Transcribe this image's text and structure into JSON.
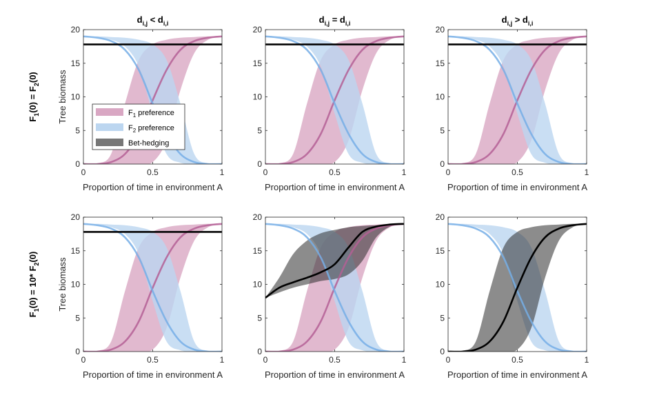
{
  "figure": {
    "column_titles": [
      {
        "base": "d",
        "sub1": "i,j",
        "op": " < ",
        "sub2": "i,i"
      },
      {
        "base": "d",
        "sub1": "i,j",
        "op": " = ",
        "sub2": "i,i"
      },
      {
        "base": "d",
        "sub1": "i,j",
        "op": " > ",
        "sub2": "i,i"
      }
    ],
    "row_labels": [
      {
        "pre": "F",
        "sub1": "1",
        "mid": "(0) = F",
        "sub2": "2",
        "post": "(0)"
      },
      {
        "pre": "F",
        "sub1": "1",
        "mid": "(0) = 10* F",
        "sub2": "2",
        "post": "(0)"
      }
    ],
    "colors": {
      "f1_fill": "#d9a7c3",
      "f1_line": "#b45f95",
      "f2_fill": "#bcd6f0",
      "f2_line": "#76aee6",
      "overlap": "#b5a7d6",
      "bet_fill": "#2e2e2e",
      "bet_line": "#000000"
    },
    "legend": {
      "items": [
        {
          "pre": "F",
          "sub": "1",
          "post": " preference",
          "key": "f1"
        },
        {
          "pre": "F",
          "sub": "2",
          "post": " preference",
          "key": "f2"
        },
        {
          "pre": "Bet-hedging",
          "sub": "",
          "post": "",
          "key": "bet"
        }
      ]
    }
  },
  "chart_data": [
    {
      "type": "area",
      "row": 0,
      "col": 0,
      "xlabel": "Proportion of time in environment A",
      "ylabel": "Tree biomass",
      "xlim": [
        0,
        1
      ],
      "ylim": [
        0,
        20
      ],
      "xticks": [
        0,
        0.5,
        1
      ],
      "yticks": [
        0,
        5,
        10,
        15,
        20
      ],
      "series": [
        {
          "name": "F1 preference",
          "kind": "band_line",
          "x": [
            0,
            0.1,
            0.2,
            0.3,
            0.4,
            0.5,
            0.6,
            0.7,
            0.8,
            0.9,
            1
          ],
          "y": [
            0,
            0,
            0.3,
            1.5,
            4.5,
            9.5,
            14,
            17,
            18.3,
            18.8,
            19
          ],
          "lower": [
            0,
            0,
            0,
            0,
            0,
            0.3,
            3.5,
            11,
            16.5,
            18.5,
            19
          ],
          "upper": [
            0,
            0.1,
            1.5,
            9,
            15.5,
            17.8,
            18.5,
            18.8,
            18.9,
            19,
            19
          ]
        },
        {
          "name": "F2 preference",
          "kind": "band_line",
          "x": [
            0,
            0.1,
            0.2,
            0.3,
            0.4,
            0.5,
            0.6,
            0.7,
            0.8,
            0.9,
            1
          ],
          "y": [
            19,
            18.8,
            18.3,
            17,
            14,
            9,
            4.5,
            1.5,
            0.3,
            0,
            0
          ],
          "lower": [
            19,
            18.9,
            18.5,
            17.5,
            14.5,
            7.5,
            1.5,
            0.2,
            0,
            0,
            0
          ],
          "upper": [
            19,
            19,
            18.9,
            18.8,
            18.5,
            17.8,
            15.5,
            9,
            1.5,
            0.1,
            0
          ]
        },
        {
          "name": "Bet-hedging",
          "kind": "line",
          "x": [
            0,
            0.25,
            0.5,
            0.75,
            1
          ],
          "y": [
            17.8,
            17.8,
            17.8,
            17.8,
            17.8
          ]
        }
      ]
    },
    {
      "type": "area",
      "row": 0,
      "col": 1,
      "xlabel": "Proportion of time in environment A",
      "ylabel": "",
      "xlim": [
        0,
        1
      ],
      "ylim": [
        0,
        20
      ],
      "xticks": [
        0,
        0.5,
        1
      ],
      "yticks": [
        0,
        5,
        10,
        15,
        20
      ],
      "series": [
        {
          "name": "F1 preference",
          "kind": "band_line",
          "x": [
            0,
            0.1,
            0.2,
            0.3,
            0.4,
            0.5,
            0.6,
            0.7,
            0.8,
            0.9,
            1
          ],
          "y": [
            0,
            0,
            0.3,
            1.5,
            4.5,
            9.5,
            14,
            17,
            18.3,
            18.8,
            19
          ],
          "lower": [
            0,
            0,
            0,
            0,
            0,
            0.3,
            3.5,
            11,
            16.5,
            18.5,
            19
          ],
          "upper": [
            0,
            0.1,
            1.5,
            9,
            15.5,
            17.8,
            18.5,
            18.8,
            18.9,
            19,
            19
          ]
        },
        {
          "name": "F2 preference",
          "kind": "band_line",
          "x": [
            0,
            0.1,
            0.2,
            0.3,
            0.4,
            0.5,
            0.6,
            0.7,
            0.8,
            0.9,
            1
          ],
          "y": [
            19,
            18.8,
            18.3,
            17,
            14,
            9,
            4.5,
            1.5,
            0.3,
            0,
            0
          ],
          "lower": [
            19,
            18.9,
            18.5,
            17.5,
            14.5,
            7.5,
            1.5,
            0.2,
            0,
            0,
            0
          ],
          "upper": [
            19,
            19,
            18.9,
            18.8,
            18.5,
            17.8,
            15.5,
            9,
            1.5,
            0.1,
            0
          ]
        },
        {
          "name": "Bet-hedging",
          "kind": "line",
          "x": [
            0,
            0.25,
            0.5,
            0.75,
            1
          ],
          "y": [
            17.8,
            17.8,
            17.8,
            17.8,
            17.8
          ]
        }
      ]
    },
    {
      "type": "area",
      "row": 0,
      "col": 2,
      "xlabel": "Proportion of time in environment A",
      "ylabel": "",
      "xlim": [
        0,
        1
      ],
      "ylim": [
        0,
        20
      ],
      "xticks": [
        0,
        0.5,
        1
      ],
      "yticks": [
        0,
        5,
        10,
        15,
        20
      ],
      "series": [
        {
          "name": "F1 preference",
          "kind": "band_line",
          "x": [
            0,
            0.1,
            0.2,
            0.3,
            0.4,
            0.5,
            0.6,
            0.7,
            0.8,
            0.9,
            1
          ],
          "y": [
            0,
            0,
            0.3,
            1.5,
            4.5,
            9.5,
            14,
            17,
            18.3,
            18.8,
            19
          ],
          "lower": [
            0,
            0,
            0,
            0,
            0,
            0.3,
            3.5,
            11,
            16.5,
            18.5,
            19
          ],
          "upper": [
            0,
            0.1,
            1.5,
            9,
            15.5,
            17.8,
            18.5,
            18.8,
            18.9,
            19,
            19
          ]
        },
        {
          "name": "F2 preference",
          "kind": "band_line",
          "x": [
            0,
            0.1,
            0.2,
            0.3,
            0.4,
            0.5,
            0.6,
            0.7,
            0.8,
            0.9,
            1
          ],
          "y": [
            19,
            18.8,
            18.3,
            17,
            14,
            9,
            4.5,
            1.5,
            0.3,
            0,
            0
          ],
          "lower": [
            19,
            18.9,
            18.5,
            17.5,
            14.5,
            7.5,
            1.5,
            0.2,
            0,
            0,
            0
          ],
          "upper": [
            19,
            19,
            18.9,
            18.8,
            18.5,
            17.8,
            15.5,
            9,
            1.5,
            0.1,
            0
          ]
        },
        {
          "name": "Bet-hedging",
          "kind": "line",
          "x": [
            0,
            0.25,
            0.5,
            0.75,
            1
          ],
          "y": [
            17.8,
            17.8,
            17.8,
            17.8,
            17.8
          ]
        }
      ]
    },
    {
      "type": "area",
      "row": 1,
      "col": 0,
      "xlabel": "Proportion of time in environment A",
      "ylabel": "Tree biomass",
      "xlim": [
        0,
        1
      ],
      "ylim": [
        0,
        20
      ],
      "xticks": [
        0,
        0.5,
        1
      ],
      "yticks": [
        0,
        5,
        10,
        15,
        20
      ],
      "series": [
        {
          "name": "F1 preference",
          "kind": "band_line",
          "x": [
            0,
            0.1,
            0.2,
            0.3,
            0.4,
            0.5,
            0.6,
            0.7,
            0.8,
            0.9,
            1
          ],
          "y": [
            0,
            0,
            0.3,
            1.5,
            4.5,
            9.5,
            14,
            17,
            18.3,
            18.8,
            19
          ],
          "lower": [
            0,
            0,
            0,
            0,
            0,
            0.3,
            3.5,
            11,
            16.5,
            18.5,
            19
          ],
          "upper": [
            0,
            0.1,
            1.5,
            9,
            15.5,
            17.8,
            18.5,
            18.8,
            18.9,
            19,
            19
          ]
        },
        {
          "name": "F2 preference",
          "kind": "band_line",
          "x": [
            0,
            0.1,
            0.2,
            0.3,
            0.4,
            0.5,
            0.6,
            0.7,
            0.8,
            0.9,
            1
          ],
          "y": [
            19,
            18.8,
            18.3,
            17,
            14,
            9,
            4.5,
            1.5,
            0.3,
            0,
            0
          ],
          "lower": [
            19,
            18.9,
            18.5,
            17.5,
            14.5,
            7.5,
            1.5,
            0.2,
            0,
            0,
            0
          ],
          "upper": [
            19,
            19,
            18.9,
            18.8,
            18.5,
            17.8,
            15.5,
            9,
            1.5,
            0.1,
            0
          ]
        },
        {
          "name": "Bet-hedging",
          "kind": "line",
          "x": [
            0,
            0.25,
            0.5,
            0.75,
            1
          ],
          "y": [
            17.8,
            17.8,
            17.8,
            17.8,
            17.8
          ]
        }
      ]
    },
    {
      "type": "area",
      "row": 1,
      "col": 1,
      "xlabel": "Proportion of time in environment A",
      "ylabel": "",
      "xlim": [
        0,
        1
      ],
      "ylim": [
        0,
        20
      ],
      "xticks": [
        0,
        0.5,
        1
      ],
      "yticks": [
        0,
        5,
        10,
        15,
        20
      ],
      "series": [
        {
          "name": "F1 preference",
          "kind": "band_line",
          "x": [
            0,
            0.1,
            0.2,
            0.3,
            0.4,
            0.5,
            0.6,
            0.7,
            0.8,
            0.9,
            1
          ],
          "y": [
            0,
            0,
            0.3,
            1.5,
            4.5,
            9.5,
            14,
            17,
            18.3,
            18.8,
            19
          ],
          "lower": [
            0,
            0,
            0,
            0,
            0,
            0.3,
            3.5,
            11,
            16.5,
            18.5,
            19
          ],
          "upper": [
            0,
            0.1,
            1.5,
            9,
            15.5,
            17.8,
            18.5,
            18.8,
            18.9,
            19,
            19
          ]
        },
        {
          "name": "F2 preference",
          "kind": "band_line",
          "x": [
            0,
            0.1,
            0.2,
            0.3,
            0.4,
            0.5,
            0.6,
            0.7,
            0.8,
            0.9,
            1
          ],
          "y": [
            19,
            18.8,
            18.3,
            17,
            14,
            9,
            4.5,
            1.5,
            0.3,
            0,
            0
          ],
          "lower": [
            19,
            18.9,
            18.5,
            17.5,
            14.5,
            7.5,
            1.5,
            0.2,
            0,
            0,
            0
          ],
          "upper": [
            19,
            19,
            18.9,
            18.8,
            18.5,
            17.8,
            15.5,
            9,
            1.5,
            0.1,
            0
          ]
        },
        {
          "name": "Bet-hedging",
          "kind": "band_line",
          "x": [
            0,
            0.1,
            0.2,
            0.3,
            0.4,
            0.5,
            0.6,
            0.7,
            0.8,
            0.9,
            1
          ],
          "y": [
            8,
            9.5,
            10.3,
            11,
            11.8,
            13,
            15.5,
            17.8,
            18.6,
            18.9,
            19
          ],
          "lower": [
            8,
            8.8,
            9.5,
            10,
            10.5,
            10.8,
            11.5,
            13.5,
            17,
            18.6,
            19
          ],
          "upper": [
            8,
            11,
            14.5,
            16.5,
            17.6,
            18.1,
            18.5,
            18.7,
            18.8,
            18.9,
            19
          ]
        }
      ]
    },
    {
      "type": "area",
      "row": 1,
      "col": 2,
      "xlabel": "Proportion of time in environment A",
      "ylabel": "",
      "xlim": [
        0,
        1
      ],
      "ylim": [
        0,
        20
      ],
      "xticks": [
        0,
        0.5,
        1
      ],
      "yticks": [
        0,
        5,
        10,
        15,
        20
      ],
      "series": [
        {
          "name": "F2 preference",
          "kind": "band_line",
          "x": [
            0,
            0.1,
            0.2,
            0.3,
            0.4,
            0.5,
            0.6,
            0.7,
            0.8,
            0.9,
            1
          ],
          "y": [
            19,
            18.8,
            18.3,
            17,
            14,
            9,
            4.5,
            1.5,
            0.3,
            0,
            0
          ],
          "lower": [
            19,
            18.9,
            18.5,
            17.5,
            14.5,
            7.5,
            1.5,
            0.2,
            0,
            0,
            0
          ],
          "upper": [
            19,
            19,
            18.9,
            18.8,
            18.5,
            17.8,
            15.5,
            9,
            1.5,
            0.1,
            0
          ]
        },
        {
          "name": "Bet-hedging",
          "kind": "band_line",
          "x": [
            0,
            0.1,
            0.2,
            0.3,
            0.4,
            0.5,
            0.6,
            0.7,
            0.8,
            0.9,
            1
          ],
          "y": [
            0,
            0,
            0.3,
            1.5,
            4.5,
            9.5,
            14,
            17,
            18.3,
            18.8,
            19
          ],
          "lower": [
            0,
            0,
            0,
            0,
            0,
            0.3,
            3.5,
            11,
            16.5,
            18.5,
            19
          ],
          "upper": [
            0,
            0.1,
            1.5,
            9,
            15.5,
            17.8,
            18.5,
            18.8,
            18.9,
            19,
            19
          ]
        }
      ]
    }
  ]
}
